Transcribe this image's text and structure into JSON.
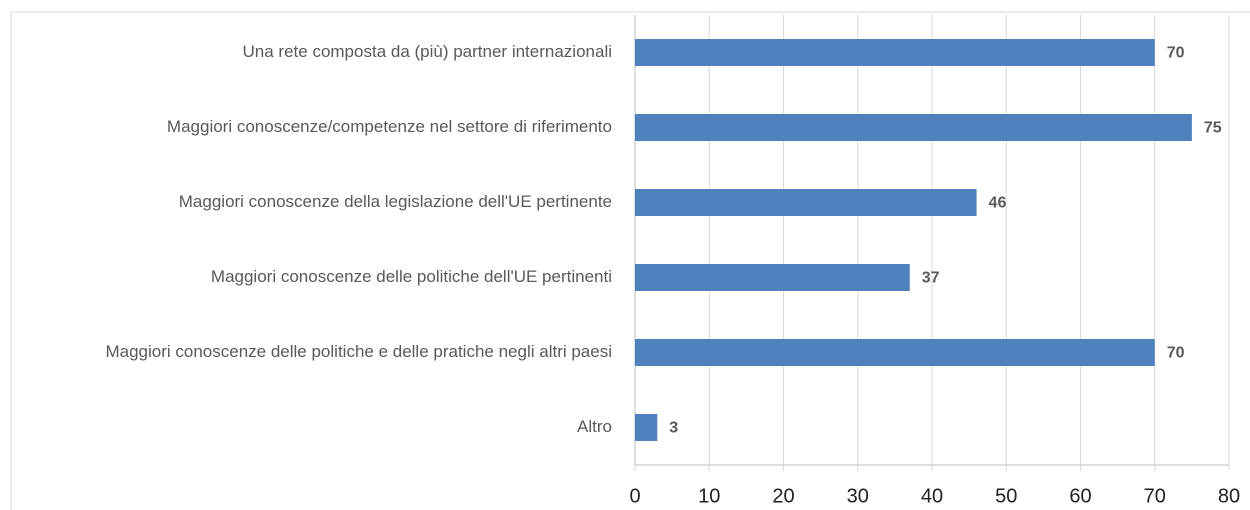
{
  "chart_data": {
    "type": "bar",
    "orientation": "horizontal",
    "categories": [
      "Una rete composta da (più) partner internazionali",
      "Maggiori conoscenze/competenze nel settore di riferimento",
      "Maggiori conoscenze della legislazione dell'UE pertinente",
      "Maggiori conoscenze delle politiche dell'UE pertinenti",
      "Maggiori conoscenze delle politiche e delle pratiche negli altri paesi",
      "Altro"
    ],
    "values": [
      70,
      75,
      46,
      37,
      70,
      3
    ],
    "color": "#4f81bd",
    "xlim": [
      0,
      80
    ],
    "xticks": [
      0,
      10,
      20,
      30,
      40,
      50,
      60,
      70,
      80
    ],
    "grid": true
  }
}
